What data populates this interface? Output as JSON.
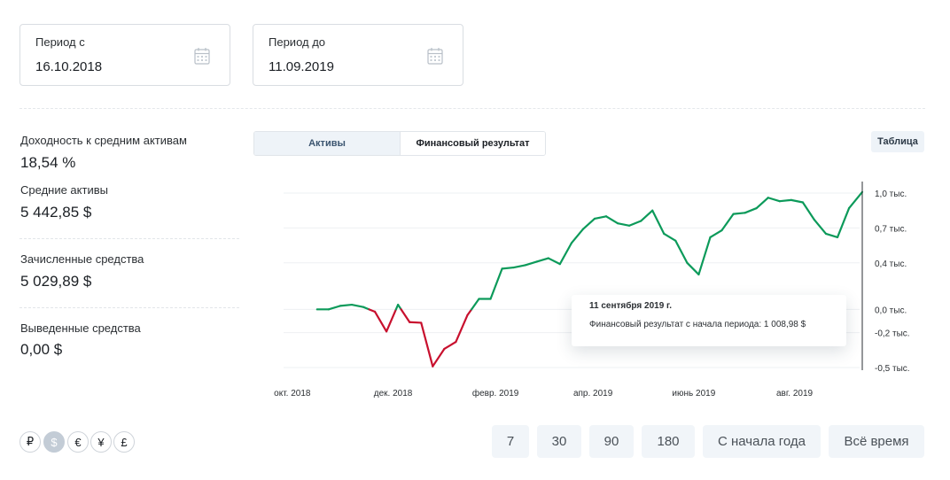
{
  "period_from": {
    "label": "Период с",
    "value": "16.10.2018",
    "icon": "calendar-icon"
  },
  "period_to": {
    "label": "Период до",
    "value": "11.09.2019",
    "icon": "calendar-icon"
  },
  "metrics": [
    {
      "label": "Доходность к средним активам",
      "value": "18,54 %"
    },
    {
      "label": "Средние активы",
      "value": "5 442,85 $"
    },
    {
      "label": "Зачисленные средства",
      "value": "5 029,89 $"
    },
    {
      "label": "Выведенные средства",
      "value": "0,00 $"
    }
  ],
  "tabs": [
    {
      "label": "Активы",
      "active": true
    },
    {
      "label": "Финансовый результат",
      "active": false
    }
  ],
  "table_button": "Таблица",
  "tooltip": {
    "date": "11 сентября 2019 г.",
    "text": "Финансовый результат с начала периода: 1 008,98 $"
  },
  "currencies": [
    {
      "symbol": "₽",
      "name": "ruble-icon",
      "active": false
    },
    {
      "symbol": "$",
      "name": "dollar-icon",
      "active": true
    },
    {
      "symbol": "€",
      "name": "euro-icon",
      "active": false
    },
    {
      "symbol": "¥",
      "name": "yen-icon",
      "active": false
    },
    {
      "symbol": "£",
      "name": "pound-icon",
      "active": false
    }
  ],
  "periods": [
    "7",
    "30",
    "90",
    "180",
    "С начала года",
    "Всё время"
  ],
  "colors": {
    "positive": "#0c9a5a",
    "negative": "#c8102e",
    "accent_bg": "#eef3f8"
  },
  "chart_data": {
    "type": "line",
    "title": "",
    "xlabel": "",
    "ylabel": "",
    "x_tick_labels": [
      "окт. 2018",
      "дек. 2018",
      "февр. 2019",
      "апр. 2019",
      "июнь 2019",
      "авг. 2019"
    ],
    "x_ticks": [
      "2018-10-01",
      "2018-12-01",
      "2019-02-01",
      "2019-04-01",
      "2019-06-01",
      "2019-08-01"
    ],
    "xlim": [
      "2018-09-15",
      "2019-09-11"
    ],
    "y_tick_labels": [
      "1,0 тыс.",
      "0,7 тыс.",
      "0,4 тыс.",
      "0,0 тыс.",
      "-0,2 тыс.",
      "-0,5 тыс."
    ],
    "y_ticks": [
      1000,
      700,
      400,
      0,
      -200,
      -500
    ],
    "ylim": [
      -500,
      1000
    ],
    "grid": true,
    "series": [
      {
        "x": [
          "2018-10-16",
          "2018-10-23",
          "2018-10-30",
          "2018-11-06",
          "2018-11-13",
          "2018-11-20",
          "2018-11-27",
          "2018-12-04",
          "2018-12-11",
          "2018-12-18",
          "2018-12-25",
          "2019-01-01",
          "2019-01-08",
          "2019-01-15",
          "2019-01-22",
          "2019-01-29",
          "2019-02-05",
          "2019-02-12",
          "2019-02-19",
          "2019-02-26",
          "2019-03-05",
          "2019-03-12",
          "2019-03-19",
          "2019-03-26",
          "2019-04-02",
          "2019-04-09",
          "2019-04-16",
          "2019-04-23",
          "2019-04-30",
          "2019-05-07",
          "2019-05-14",
          "2019-05-21",
          "2019-05-28",
          "2019-06-04",
          "2019-06-11",
          "2019-06-18",
          "2019-06-25",
          "2019-07-02",
          "2019-07-09",
          "2019-07-16",
          "2019-07-23",
          "2019-07-30",
          "2019-08-06",
          "2019-08-13",
          "2019-08-20",
          "2019-08-27",
          "2019-09-03",
          "2019-09-11"
        ],
        "y": [
          0,
          0,
          30,
          40,
          20,
          -20,
          -190,
          40,
          -110,
          -115,
          -490,
          -340,
          -280,
          -50,
          90,
          90,
          350,
          360,
          380,
          410,
          440,
          390,
          570,
          690,
          780,
          800,
          740,
          720,
          760,
          850,
          650,
          590,
          400,
          300,
          620,
          680,
          820,
          830,
          870,
          960,
          930,
          940,
          920,
          770,
          650,
          620,
          870,
          1008.98
        ]
      }
    ]
  }
}
